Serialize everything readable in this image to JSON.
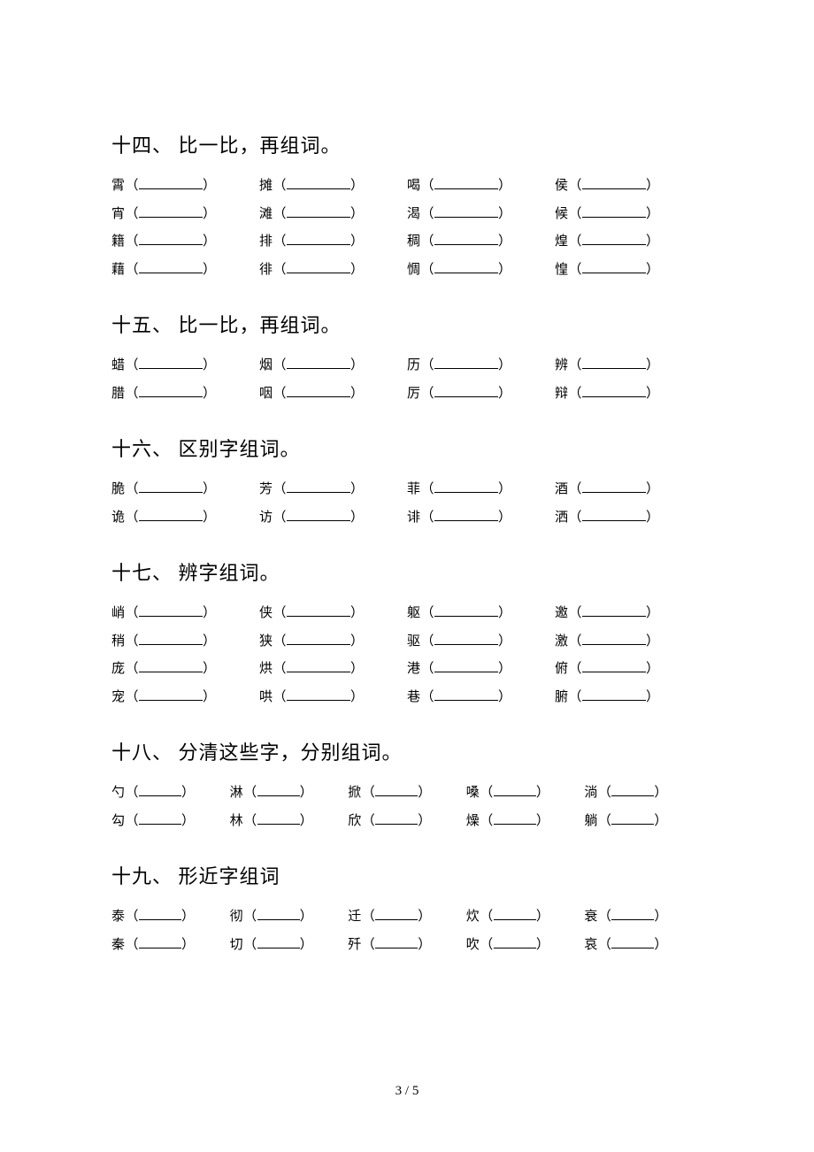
{
  "page_number": "3 / 5",
  "sections": [
    {
      "title": "十四、 比一比，再组词。",
      "cols": 4,
      "blank": "long",
      "rows": [
        [
          "霄",
          "摊",
          "喝",
          "侯"
        ],
        [
          "宵",
          "滩",
          "渴",
          "候"
        ],
        [
          "籍",
          "排",
          "稠",
          "煌"
        ],
        [
          "藉",
          "徘",
          "惆",
          "惶"
        ]
      ]
    },
    {
      "title": "十五、 比一比，再组词。",
      "cols": 4,
      "blank": "long",
      "rows": [
        [
          "蜡",
          "烟",
          "历",
          "辨"
        ],
        [
          "腊",
          "咽",
          "厉",
          "辩"
        ]
      ]
    },
    {
      "title": "十六、 区别字组词。",
      "cols": 4,
      "blank": "long",
      "rows": [
        [
          "脆",
          "芳",
          "菲",
          "酒"
        ],
        [
          "诡",
          "访",
          "诽",
          "洒"
        ]
      ]
    },
    {
      "title": "十七、 辨字组词。",
      "cols": 4,
      "blank": "long",
      "rows": [
        [
          "峭",
          "侠",
          "躯",
          "邀"
        ],
        [
          "稍",
          "狭",
          "驱",
          "激"
        ],
        [
          "庞",
          "烘",
          "港",
          "俯"
        ],
        [
          "宠",
          "哄",
          "巷",
          "腑"
        ]
      ]
    },
    {
      "title": "十八、 分清这些字，分别组词。",
      "cols": 5,
      "blank": "mid",
      "rows": [
        [
          "勺",
          "淋",
          "掀",
          "嗓",
          "淌"
        ],
        [
          "勾",
          "林",
          "欣",
          "燥",
          "躺"
        ]
      ]
    },
    {
      "title": "十九、 形近字组词",
      "cols": 5,
      "blank": "mid",
      "rows": [
        [
          "泰",
          "彻",
          "迁",
          "炊",
          "衰"
        ],
        [
          "秦",
          "切",
          "歼",
          "吹",
          "哀"
        ]
      ]
    }
  ]
}
